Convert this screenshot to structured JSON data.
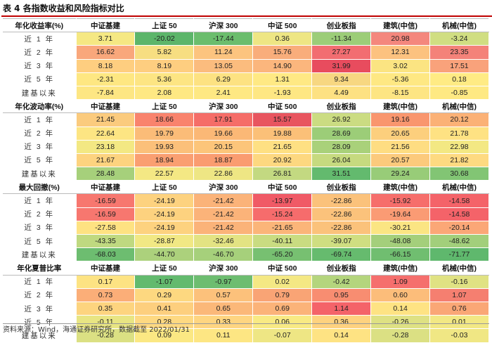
{
  "title": "表 4 各指数收益和风险指标对比",
  "columns": [
    "中证基建",
    "上证 50",
    "沪深 300",
    "中证 500",
    "创业板指",
    "建筑(中信)",
    "机械(中信)"
  ],
  "row_labels": [
    "近 1 年",
    "近 2 年",
    "近 3 年",
    "近 5 年",
    "建基以来"
  ],
  "sections": [
    {
      "label": "年化收益率(%)",
      "rows": [
        [
          "3.71",
          "-20.02",
          "-17.44",
          "0.36",
          "-11.34",
          "20.98",
          "-3.24"
        ],
        [
          "16.62",
          "5.82",
          "11.24",
          "15.76",
          "27.27",
          "12.31",
          "23.35"
        ],
        [
          "8.18",
          "8.19",
          "13.05",
          "14.90",
          "31.99",
          "3.02",
          "17.51"
        ],
        [
          "-2.31",
          "5.36",
          "6.29",
          "1.31",
          "9.34",
          "-5.36",
          "0.18"
        ],
        [
          "-7.84",
          "2.08",
          "2.41",
          "-1.93",
          "4.49",
          "-8.15",
          "-0.85"
        ]
      ],
      "colors": [
        [
          "#f5e883",
          "#5cb56a",
          "#6bbd6d",
          "#eee684",
          "#9ccd78",
          "#f4877d",
          "#d0de82"
        ],
        [
          "#f9a77b",
          "#f7de81",
          "#fcc47f",
          "#f9ad7b",
          "#f26d71",
          "#fcc27f",
          "#f48279"
        ],
        [
          "#fece80",
          "#fece80",
          "#fbbc7e",
          "#fbb67d",
          "#e84c5e",
          "#fbe482",
          "#f9a27b"
        ],
        [
          "#fee782",
          "#fde583",
          "#fde282",
          "#ffe984",
          "#f7d781",
          "#fee883",
          "#ffeb84"
        ],
        [
          "#fde683",
          "#fee883",
          "#fee883",
          "#fee783",
          "#fde182",
          "#fde583",
          "#fee983"
        ]
      ]
    },
    {
      "label": "年化波动率(%)",
      "rows": [
        [
          "21.45",
          "18.66",
          "17.91",
          "15.57",
          "26.92",
          "19.16",
          "20.12"
        ],
        [
          "22.64",
          "19.79",
          "19.66",
          "19.88",
          "28.69",
          "20.65",
          "21.78"
        ],
        [
          "23.18",
          "19.93",
          "20.15",
          "21.65",
          "28.09",
          "21.56",
          "22.98"
        ],
        [
          "21.67",
          "18.94",
          "18.87",
          "20.92",
          "26.04",
          "20.57",
          "21.82"
        ],
        [
          "28.48",
          "22.57",
          "22.86",
          "26.81",
          "31.51",
          "29.24",
          "30.68"
        ]
      ],
      "colors": [
        [
          "#fbcb7e",
          "#f9836d",
          "#f56d68",
          "#e8555f",
          "#cbdc82",
          "#f9966e",
          "#fbb176"
        ],
        [
          "#fde583",
          "#fbbc78",
          "#fbb876",
          "#fbc078",
          "#9ccd78",
          "#fccf7d",
          "#fee283"
        ],
        [
          "#f3e883",
          "#fbc07a",
          "#fcc57a",
          "#fee083",
          "#a9d17a",
          "#fedd82",
          "#f3e883"
        ],
        [
          "#fdd37f",
          "#fa9f71",
          "#fa9c70",
          "#fdd880",
          "#c6da7f",
          "#fcca7c",
          "#feda81"
        ],
        [
          "#a6d07b",
          "#f4e884",
          "#eee684",
          "#c3d981",
          "#63ba6e",
          "#98cc78",
          "#82c574"
        ]
      ]
    },
    {
      "label": "最大回撤(%)",
      "rows": [
        [
          "-16.59",
          "-24.19",
          "-21.42",
          "-13.97",
          "-22.86",
          "-15.92",
          "-14.58"
        ],
        [
          "-16.59",
          "-24.19",
          "-21.42",
          "-15.24",
          "-22.86",
          "-19.64",
          "-14.58"
        ],
        [
          "-27.58",
          "-24.19",
          "-21.42",
          "-21.65",
          "-22.86",
          "-30.21",
          "-20.14"
        ],
        [
          "-43.35",
          "-28.87",
          "-32.46",
          "-40.11",
          "-39.07",
          "-48.08",
          "-48.62"
        ],
        [
          "-68.03",
          "-44.70",
          "-46.70",
          "-65.20",
          "-69.74",
          "-66.15",
          "-71.77"
        ]
      ],
      "colors": [
        [
          "#f7776f",
          "#fdd27f",
          "#fbb379",
          "#f05a66",
          "#fbc27b",
          "#f66e6b",
          "#f46369"
        ],
        [
          "#f7776f",
          "#fdd27f",
          "#fbb379",
          "#f66c6c",
          "#fbc27b",
          "#fa9b74",
          "#f46369"
        ],
        [
          "#fee282",
          "#fdd27f",
          "#fbb379",
          "#fbb579",
          "#fbc27b",
          "#fbe583",
          "#fba777"
        ],
        [
          "#bfd980",
          "#f1e884",
          "#e3e383",
          "#c9dc81",
          "#cfde81",
          "#a4cf7b",
          "#a2cf7b"
        ],
        [
          "#6dbd70",
          "#acd17c",
          "#a6d07b",
          "#77c071",
          "#66bb6e",
          "#70be70",
          "#5fb86d"
        ]
      ]
    },
    {
      "label": "年化夏普比率",
      "rows": [
        [
          "0.17",
          "-1.07",
          "-0.97",
          "0.02",
          "-0.42",
          "1.09",
          "-0.16"
        ],
        [
          "0.73",
          "0.29",
          "0.57",
          "0.79",
          "0.95",
          "0.60",
          "1.07"
        ],
        [
          "0.35",
          "0.41",
          "0.65",
          "0.69",
          "1.14",
          "0.14",
          "0.76"
        ],
        [
          "-0.11",
          "0.28",
          "0.33",
          "0.06",
          "0.36",
          "-0.26",
          "0.01"
        ],
        [
          "-0.28",
          "0.09",
          "0.11",
          "-0.07",
          "0.14",
          "-0.28",
          "-0.03"
        ]
      ],
      "colors": [
        [
          "#fde383",
          "#63ba6e",
          "#6dbd70",
          "#f4e884",
          "#b4d57d",
          "#f56f6d",
          "#e0e283"
        ],
        [
          "#fbae78",
          "#fdd880",
          "#fcc17b",
          "#f9a475",
          "#f88d71",
          "#fcbd7a",
          "#f57f70"
        ],
        [
          "#fdd47f",
          "#fdcf7e",
          "#fbb879",
          "#fbb379",
          "#f46369",
          "#fee383",
          "#faa776"
        ],
        [
          "#e8e583",
          "#fed982",
          "#fed581",
          "#f8ea84",
          "#fed27f",
          "#dee183",
          "#f2e884"
        ],
        [
          "#dbe083",
          "#fbe883",
          "#fde683",
          "#eee684",
          "#fee383",
          "#dbe083",
          "#f0e784"
        ]
      ]
    }
  ],
  "source": "资料来源：Wind，海通证券研究所，数据截至 2022/01/31"
}
